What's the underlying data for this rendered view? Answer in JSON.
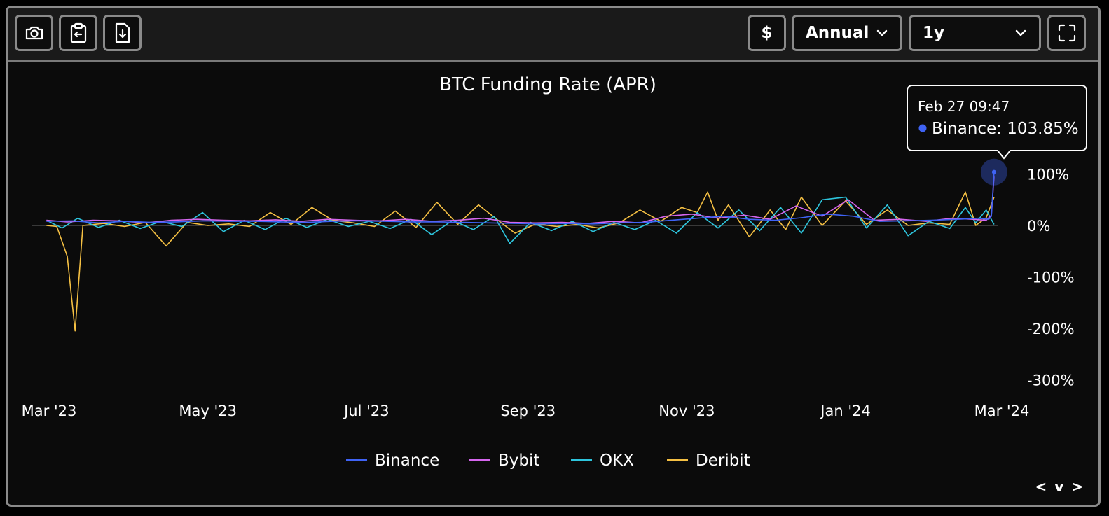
{
  "toolbar": {
    "left_icons": [
      "camera-icon",
      "clipboard-icon",
      "file-download-icon"
    ],
    "currency_label": "$",
    "period_value": "Annual",
    "range_value": "1y",
    "right_icon": "fullscreen-icon"
  },
  "colors": {
    "background": "#0b0b0b",
    "toolbar": "#1a1a1a",
    "border": "#8a8a8a",
    "Binance": "#3f63f5",
    "Bybit": "#d566ee",
    "OKX": "#2ec5dd",
    "Deribit": "#f5c043",
    "zero_line": "#555555"
  },
  "pager": {
    "prev": "<",
    "down": "v",
    "next": ">"
  },
  "chart_data": {
    "type": "line",
    "title": "BTC Funding Rate (APR)",
    "y_unit": "%",
    "ylim": [
      -300,
      100
    ],
    "y_ticks": [
      100,
      0,
      -100,
      -200,
      -300
    ],
    "y_tick_labels": [
      "100%",
      "0%",
      "-100%",
      "-200%",
      "-300%"
    ],
    "x_range": [
      "2023-02-28",
      "2024-02-28"
    ],
    "x_ticks": [
      "2023-03-01",
      "2023-05-01",
      "2023-07-01",
      "2023-09-01",
      "2023-11-01",
      "2024-01-01",
      "2024-03-01"
    ],
    "x_tick_labels": [
      "Mar '23",
      "May '23",
      "Jul '23",
      "Sep '23",
      "Nov '23",
      "Jan '24",
      "Mar '24"
    ],
    "grid": false,
    "legend": "bottom-center",
    "tooltip": {
      "date": "Feb 27 09:47",
      "series": "Binance",
      "text": "Binance: 103.85%",
      "value": 103.85
    },
    "series": [
      {
        "name": "Binance",
        "values": [
          [
            "2023-02-28",
            8
          ],
          [
            "2023-03-10",
            9
          ],
          [
            "2023-03-20",
            5
          ],
          [
            "2023-03-30",
            8
          ],
          [
            "2023-04-09",
            6
          ],
          [
            "2023-04-19",
            7
          ],
          [
            "2023-04-29",
            9
          ],
          [
            "2023-05-09",
            8
          ],
          [
            "2023-05-19",
            8
          ],
          [
            "2023-05-29",
            7
          ],
          [
            "2023-06-08",
            6
          ],
          [
            "2023-06-18",
            8
          ],
          [
            "2023-06-28",
            9
          ],
          [
            "2023-07-08",
            8
          ],
          [
            "2023-07-18",
            7
          ],
          [
            "2023-07-28",
            7
          ],
          [
            "2023-08-07",
            6
          ],
          [
            "2023-08-17",
            5
          ],
          [
            "2023-08-27",
            4
          ],
          [
            "2023-09-06",
            3
          ],
          [
            "2023-09-16",
            4
          ],
          [
            "2023-09-26",
            3
          ],
          [
            "2023-10-06",
            5
          ],
          [
            "2023-10-16",
            6
          ],
          [
            "2023-10-26",
            10
          ],
          [
            "2023-11-05",
            14
          ],
          [
            "2023-11-15",
            18
          ],
          [
            "2023-11-25",
            12
          ],
          [
            "2023-12-05",
            10
          ],
          [
            "2023-12-15",
            15
          ],
          [
            "2023-12-25",
            22
          ],
          [
            "2024-01-04",
            18
          ],
          [
            "2024-01-14",
            8
          ],
          [
            "2024-01-24",
            9
          ],
          [
            "2024-02-03",
            10
          ],
          [
            "2024-02-13",
            12
          ],
          [
            "2024-02-21",
            14
          ],
          [
            "2024-02-25",
            12
          ],
          [
            "2024-02-26",
            18
          ],
          [
            "2024-02-27",
            103.85
          ]
        ]
      },
      {
        "name": "Bybit",
        "values": [
          [
            "2023-02-28",
            10
          ],
          [
            "2023-03-08",
            7
          ],
          [
            "2023-03-18",
            10
          ],
          [
            "2023-03-28",
            9
          ],
          [
            "2023-04-07",
            5
          ],
          [
            "2023-04-17",
            10
          ],
          [
            "2023-04-27",
            12
          ],
          [
            "2023-05-07",
            10
          ],
          [
            "2023-05-17",
            9
          ],
          [
            "2023-05-27",
            11
          ],
          [
            "2023-06-06",
            8
          ],
          [
            "2023-06-16",
            12
          ],
          [
            "2023-06-26",
            10
          ],
          [
            "2023-07-06",
            9
          ],
          [
            "2023-07-16",
            12
          ],
          [
            "2023-07-26",
            8
          ],
          [
            "2023-08-05",
            10
          ],
          [
            "2023-08-15",
            14
          ],
          [
            "2023-08-25",
            6
          ],
          [
            "2023-09-04",
            5
          ],
          [
            "2023-09-14",
            6
          ],
          [
            "2023-09-24",
            4
          ],
          [
            "2023-10-04",
            8
          ],
          [
            "2023-10-14",
            5
          ],
          [
            "2023-10-24",
            18
          ],
          [
            "2023-11-03",
            22
          ],
          [
            "2023-11-13",
            14
          ],
          [
            "2023-11-23",
            20
          ],
          [
            "2023-12-03",
            12
          ],
          [
            "2023-12-13",
            38
          ],
          [
            "2023-12-23",
            18
          ],
          [
            "2024-01-02",
            50
          ],
          [
            "2024-01-12",
            10
          ],
          [
            "2024-01-22",
            12
          ],
          [
            "2024-02-01",
            8
          ],
          [
            "2024-02-11",
            14
          ],
          [
            "2024-02-19",
            12
          ],
          [
            "2024-02-24",
            10
          ],
          [
            "2024-02-26",
            20
          ],
          [
            "2024-02-27",
            95
          ]
        ]
      },
      {
        "name": "OKX",
        "values": [
          [
            "2023-02-28",
            10
          ],
          [
            "2023-03-06",
            -5
          ],
          [
            "2023-03-12",
            14
          ],
          [
            "2023-03-20",
            -4
          ],
          [
            "2023-03-28",
            10
          ],
          [
            "2023-04-05",
            -6
          ],
          [
            "2023-04-13",
            8
          ],
          [
            "2023-04-21",
            -2
          ],
          [
            "2023-04-29",
            25
          ],
          [
            "2023-05-07",
            -12
          ],
          [
            "2023-05-15",
            10
          ],
          [
            "2023-05-23",
            -8
          ],
          [
            "2023-05-31",
            14
          ],
          [
            "2023-06-08",
            -4
          ],
          [
            "2023-06-16",
            12
          ],
          [
            "2023-06-24",
            -2
          ],
          [
            "2023-07-02",
            8
          ],
          [
            "2023-07-10",
            -6
          ],
          [
            "2023-07-18",
            12
          ],
          [
            "2023-07-26",
            -18
          ],
          [
            "2023-08-03",
            10
          ],
          [
            "2023-08-11",
            -8
          ],
          [
            "2023-08-19",
            18
          ],
          [
            "2023-08-25",
            -35
          ],
          [
            "2023-09-02",
            6
          ],
          [
            "2023-09-10",
            -10
          ],
          [
            "2023-09-18",
            8
          ],
          [
            "2023-09-26",
            -12
          ],
          [
            "2023-10-04",
            6
          ],
          [
            "2023-10-12",
            -8
          ],
          [
            "2023-10-20",
            10
          ],
          [
            "2023-10-28",
            -15
          ],
          [
            "2023-11-05",
            25
          ],
          [
            "2023-11-13",
            -5
          ],
          [
            "2023-11-21",
            30
          ],
          [
            "2023-11-29",
            -10
          ],
          [
            "2023-12-07",
            35
          ],
          [
            "2023-12-15",
            -15
          ],
          [
            "2023-12-23",
            50
          ],
          [
            "2024-01-01",
            55
          ],
          [
            "2024-01-09",
            -5
          ],
          [
            "2024-01-17",
            40
          ],
          [
            "2024-01-25",
            -20
          ],
          [
            "2024-02-02",
            8
          ],
          [
            "2024-02-10",
            -6
          ],
          [
            "2024-02-16",
            35
          ],
          [
            "2024-02-20",
            5
          ],
          [
            "2024-02-24",
            30
          ],
          [
            "2024-02-27",
            2
          ]
        ]
      },
      {
        "name": "Deribit",
        "values": [
          [
            "2023-02-28",
            0
          ],
          [
            "2023-03-04",
            -2
          ],
          [
            "2023-03-08",
            -60
          ],
          [
            "2023-03-11",
            -205
          ],
          [
            "2023-03-14",
            0
          ],
          [
            "2023-03-22",
            4
          ],
          [
            "2023-03-30",
            -2
          ],
          [
            "2023-04-07",
            6
          ],
          [
            "2023-04-15",
            -40
          ],
          [
            "2023-04-23",
            6
          ],
          [
            "2023-05-01",
            0
          ],
          [
            "2023-05-09",
            3
          ],
          [
            "2023-05-17",
            -2
          ],
          [
            "2023-05-25",
            25
          ],
          [
            "2023-06-02",
            2
          ],
          [
            "2023-06-10",
            35
          ],
          [
            "2023-06-18",
            10
          ],
          [
            "2023-06-26",
            5
          ],
          [
            "2023-07-04",
            -2
          ],
          [
            "2023-07-12",
            28
          ],
          [
            "2023-07-20",
            -4
          ],
          [
            "2023-07-28",
            45
          ],
          [
            "2023-08-05",
            2
          ],
          [
            "2023-08-13",
            40
          ],
          [
            "2023-08-21",
            8
          ],
          [
            "2023-08-27",
            -15
          ],
          [
            "2023-09-04",
            3
          ],
          [
            "2023-09-12",
            -2
          ],
          [
            "2023-09-20",
            2
          ],
          [
            "2023-09-28",
            -5
          ],
          [
            "2023-10-06",
            5
          ],
          [
            "2023-10-14",
            30
          ],
          [
            "2023-10-22",
            8
          ],
          [
            "2023-10-30",
            35
          ],
          [
            "2023-11-05",
            25
          ],
          [
            "2023-11-09",
            65
          ],
          [
            "2023-11-13",
            10
          ],
          [
            "2023-11-17",
            40
          ],
          [
            "2023-11-25",
            -22
          ],
          [
            "2023-12-03",
            30
          ],
          [
            "2023-12-09",
            -8
          ],
          [
            "2023-12-15",
            55
          ],
          [
            "2023-12-23",
            0
          ],
          [
            "2024-01-01",
            48
          ],
          [
            "2024-01-09",
            2
          ],
          [
            "2024-01-17",
            30
          ],
          [
            "2024-01-25",
            0
          ],
          [
            "2024-02-02",
            5
          ],
          [
            "2024-02-10",
            2
          ],
          [
            "2024-02-16",
            65
          ],
          [
            "2024-02-20",
            0
          ],
          [
            "2024-02-24",
            15
          ],
          [
            "2024-02-27",
            55
          ]
        ]
      }
    ]
  }
}
